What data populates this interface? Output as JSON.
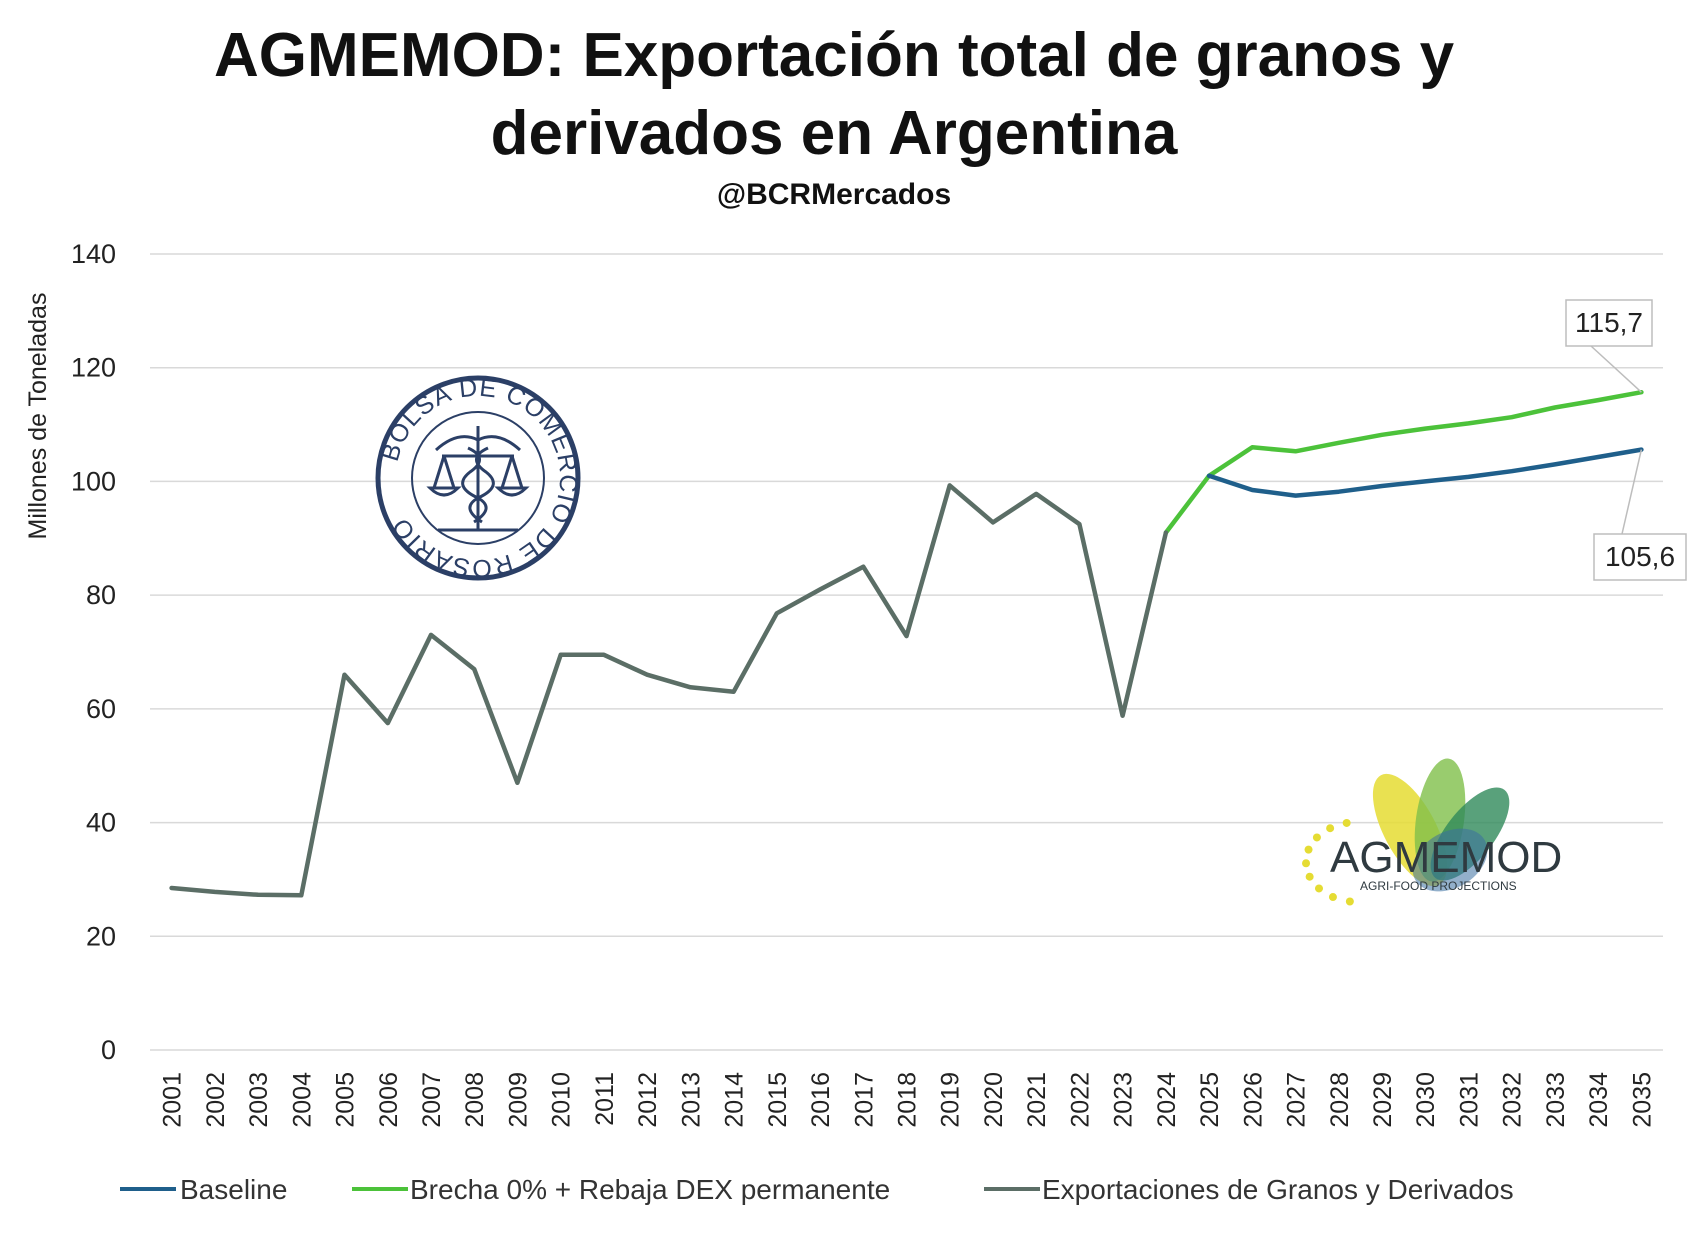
{
  "chart_data": {
    "type": "line",
    "title": "AGMEMOD: Exportación total de granos y derivados en Argentina",
    "title_lines": [
      "AGMEMOD: Exportación total de granos y",
      "derivados en Argentina"
    ],
    "subtitle": "@BCRMercados",
    "xlabel": "",
    "ylabel": "Millones de Toneladas",
    "ylim": [
      0,
      140
    ],
    "yticks": [
      0,
      20,
      40,
      60,
      80,
      100,
      120,
      140
    ],
    "grid": true,
    "legend_position": "bottom",
    "x": [
      "2001",
      "2002",
      "2003",
      "2004",
      "2005",
      "2006",
      "2007",
      "2008",
      "2009",
      "2010",
      "2011",
      "2012",
      "2013",
      "2014",
      "2015",
      "2016",
      "2017",
      "2018",
      "2019",
      "2020",
      "2021",
      "2022",
      "2023",
      "2024",
      "2025",
      "2026",
      "2027",
      "2028",
      "2029",
      "2030",
      "2031",
      "2032",
      "2033",
      "2034",
      "2035"
    ],
    "series": [
      {
        "name": "Baseline",
        "color": "#1f5f8b",
        "values": [
          null,
          null,
          null,
          null,
          null,
          null,
          null,
          null,
          null,
          null,
          null,
          null,
          null,
          null,
          null,
          null,
          null,
          null,
          null,
          null,
          null,
          null,
          null,
          null,
          101.0,
          98.5,
          97.5,
          98.2,
          99.2,
          100.0,
          100.8,
          101.8,
          103.0,
          104.3,
          105.6
        ]
      },
      {
        "name": "Brecha 0% + Rebaja DEX permanente",
        "color": "#4cc23a",
        "values": [
          null,
          null,
          null,
          null,
          null,
          null,
          null,
          null,
          null,
          null,
          null,
          null,
          null,
          null,
          null,
          null,
          null,
          null,
          null,
          null,
          null,
          null,
          null,
          91.0,
          101.0,
          106.0,
          105.3,
          106.8,
          108.2,
          109.3,
          110.2,
          111.3,
          113.0,
          114.3,
          115.7
        ]
      },
      {
        "name": "Exportaciones de Granos y Derivados",
        "color": "#5b6e66",
        "values": [
          28.5,
          27.8,
          27.3,
          27.2,
          66.0,
          57.5,
          73.0,
          67.0,
          47.0,
          69.5,
          69.5,
          66.0,
          63.8,
          63.0,
          76.8,
          81.0,
          85.0,
          72.8,
          99.3,
          92.8,
          97.8,
          92.5,
          58.8,
          91.0,
          null,
          null,
          null,
          null,
          null,
          null,
          null,
          null,
          null,
          null,
          null
        ]
      }
    ],
    "annotations": [
      {
        "text": "115,7",
        "x": "2035",
        "y": 115.7
      },
      {
        "text": "105,6",
        "x": "2035",
        "y": 105.6
      }
    ]
  },
  "logos": {
    "bcr_seal_text": "BOLSA DE COMERCIO DE ROSARIO",
    "agmemod_name": "AGMEMOD",
    "agmemod_tagline": "AGRI-FOOD PROJECTIONS",
    "agmemod_colors": [
      "#e5dc33",
      "#7fbf4a",
      "#2f8a5a",
      "#3a6fa0"
    ],
    "seal_color": "#2b3f66"
  }
}
